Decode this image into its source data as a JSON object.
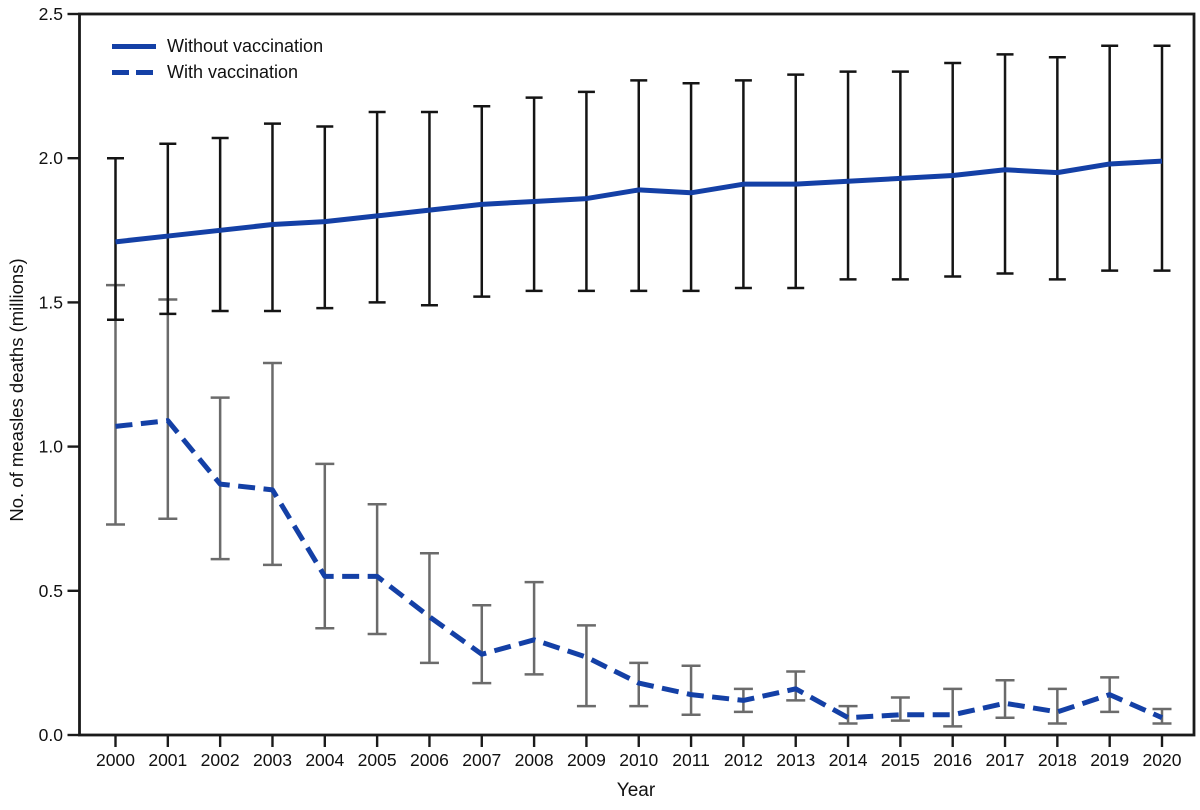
{
  "figure": {
    "y_axis_label": "No. of measles deaths (millions)",
    "x_axis_label": "Year",
    "legend": [
      {
        "label": "Without vaccination",
        "style": "solid"
      },
      {
        "label": "With vaccination",
        "style": "dashed"
      }
    ],
    "colors": {
      "line_blue": "#1440a6",
      "errorbar_black": "#141414",
      "errorbar_gray": "#6b6b6b",
      "axis": "#1a1a1a",
      "text": "#111111"
    }
  },
  "chart_data": {
    "type": "line",
    "title": "",
    "xlabel": "Year",
    "ylabel": "No. of measles deaths (millions)",
    "x": [
      2000,
      2001,
      2002,
      2003,
      2004,
      2005,
      2006,
      2007,
      2008,
      2009,
      2010,
      2011,
      2012,
      2013,
      2014,
      2015,
      2016,
      2017,
      2018,
      2019,
      2020
    ],
    "ylim": [
      0,
      2.5
    ],
    "yticks": [
      0.0,
      0.5,
      1.0,
      1.5,
      2.0,
      2.5
    ],
    "grid": false,
    "legend_position": "top-left",
    "series": [
      {
        "name": "Without vaccination",
        "style": "solid",
        "errorbar_color": "black",
        "values": [
          1.71,
          1.73,
          1.75,
          1.77,
          1.78,
          1.8,
          1.82,
          1.84,
          1.85,
          1.86,
          1.89,
          1.88,
          1.91,
          1.91,
          1.92,
          1.93,
          1.94,
          1.96,
          1.95,
          1.98,
          1.99
        ],
        "ci_low": [
          1.44,
          1.46,
          1.47,
          1.47,
          1.48,
          1.5,
          1.49,
          1.52,
          1.54,
          1.54,
          1.54,
          1.54,
          1.55,
          1.55,
          1.58,
          1.58,
          1.59,
          1.6,
          1.58,
          1.61,
          1.61
        ],
        "ci_high": [
          2.0,
          2.05,
          2.07,
          2.12,
          2.11,
          2.16,
          2.16,
          2.18,
          2.21,
          2.23,
          2.27,
          2.26,
          2.27,
          2.29,
          2.3,
          2.3,
          2.33,
          2.36,
          2.35,
          2.39,
          2.39
        ]
      },
      {
        "name": "With vaccination",
        "style": "dashed",
        "errorbar_color": "gray",
        "values": [
          1.07,
          1.09,
          0.87,
          0.85,
          0.55,
          0.55,
          0.41,
          0.28,
          0.33,
          0.27,
          0.18,
          0.14,
          0.12,
          0.16,
          0.06,
          0.07,
          0.07,
          0.11,
          0.08,
          0.14,
          0.06
        ],
        "ci_low": [
          0.73,
          0.75,
          0.61,
          0.59,
          0.37,
          0.35,
          0.25,
          0.18,
          0.21,
          0.1,
          0.1,
          0.07,
          0.08,
          0.12,
          0.04,
          0.05,
          0.03,
          0.06,
          0.04,
          0.08,
          0.04
        ],
        "ci_high": [
          1.56,
          1.51,
          1.17,
          1.29,
          0.94,
          0.8,
          0.63,
          0.45,
          0.53,
          0.38,
          0.25,
          0.24,
          0.16,
          0.22,
          0.1,
          0.13,
          0.16,
          0.19,
          0.16,
          0.2,
          0.09
        ]
      }
    ]
  }
}
